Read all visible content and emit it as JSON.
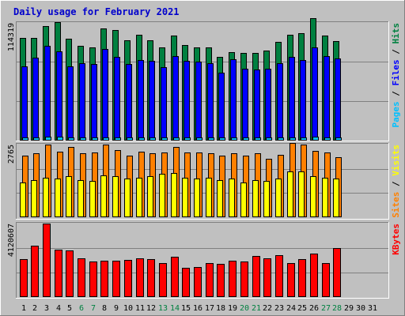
{
  "colors": {
    "background": "#c0c0c0",
    "title": "#0000cc",
    "hits": "#008040",
    "files": "#0000ff",
    "pages": "#00c0ff",
    "visits": "#ffff00",
    "sites": "#ff8000",
    "kbytes": "#ff0000",
    "weekday_label": "#000000",
    "weekend_label": "#008040",
    "gridline": "#808080"
  },
  "chart_data": {
    "type": "bar",
    "title": "Daily usage for February 2021",
    "days": [
      "1",
      "2",
      "3",
      "4",
      "5",
      "6",
      "7",
      "8",
      "9",
      "10",
      "11",
      "12",
      "13",
      "14",
      "15",
      "16",
      "17",
      "18",
      "19",
      "20",
      "21",
      "22",
      "23",
      "24",
      "25",
      "26",
      "27",
      "28",
      "29",
      "30",
      "31"
    ],
    "weekend_days": [
      "6",
      "7",
      "13",
      "14",
      "20",
      "21",
      "27",
      "28"
    ],
    "panels": [
      {
        "id": "hits-files-pages",
        "ymax_label": "114319",
        "ymax": 114319,
        "right_label": [
          {
            "text": "Pages",
            "color": "#00c0ff"
          },
          {
            "text": " / ",
            "color": "#000000"
          },
          {
            "text": "Files",
            "color": "#0000ff"
          },
          {
            "text": " / ",
            "color": "#000000"
          },
          {
            "text": "Hits",
            "color": "#008040"
          }
        ],
        "series": [
          {
            "name": "Hits",
            "color": "#008040",
            "values": [
              99300,
              99300,
              110700,
              114300,
              98500,
              91400,
              90100,
              108600,
              106500,
              96800,
              102300,
              96800,
              89900,
              101400,
              91900,
              90100,
              89700,
              80600,
              85600,
              84300,
              84800,
              86600,
              95200,
              102300,
              103300,
              118400,
              101400,
              96300,
              null,
              null,
              null
            ]
          },
          {
            "name": "Files",
            "color": "#0000ff",
            "values": [
              71900,
              79800,
              91400,
              86500,
              71400,
              75000,
              74100,
              88300,
              80900,
              74100,
              77700,
              76800,
              70500,
              81400,
              76800,
              76400,
              75000,
              65400,
              78200,
              69100,
              68600,
              69100,
              74500,
              80900,
              77700,
              90100,
              81900,
              79100,
              null,
              null,
              null
            ]
          },
          {
            "name": "Pages",
            "color": "#00c0ff",
            "values": [
              3200,
              3200,
              3600,
              3500,
              3300,
              3300,
              3000,
              3400,
              3300,
              3200,
              3300,
              3300,
              3200,
              3300,
              3200,
              3100,
              3000,
              2900,
              3100,
              3000,
              3000,
              3000,
              3300,
              3400,
              3300,
              3600,
              3300,
              3300,
              null,
              null,
              null
            ]
          }
        ]
      },
      {
        "id": "visits-sites",
        "ymax_label": "2765",
        "ymax": 2765,
        "right_label": [
          {
            "text": "Sites",
            "color": "#ff8000"
          },
          {
            "text": " / ",
            "color": "#000000"
          },
          {
            "text": "Visits",
            "color": "#ffff00"
          }
        ],
        "series": [
          {
            "name": "Sites",
            "color": "#ff8000",
            "values": [
              2330,
              2420,
              2750,
              2500,
              2660,
              2420,
              2460,
              2750,
              2560,
              2330,
              2500,
              2420,
              2460,
              2660,
              2460,
              2460,
              2420,
              2330,
              2420,
              2330,
              2420,
              2230,
              2370,
              2840,
              2750,
              2530,
              2460,
              2270,
              null,
              null,
              null
            ]
          },
          {
            "name": "Visits",
            "color": "#ffff00",
            "values": [
              1320,
              1420,
              1510,
              1460,
              1560,
              1420,
              1370,
              1600,
              1560,
              1460,
              1510,
              1560,
              1650,
              1690,
              1510,
              1460,
              1510,
              1420,
              1460,
              1320,
              1420,
              1370,
              1460,
              1740,
              1740,
              1560,
              1510,
              1460,
              null,
              null,
              null
            ]
          }
        ]
      },
      {
        "id": "kbytes",
        "ymax_label": "4120607",
        "ymax": 4120607,
        "right_label": [
          {
            "text": "KBytes",
            "color": "#ff0000"
          }
        ],
        "series": [
          {
            "name": "KBytes",
            "color": "#ff0000",
            "values": [
              2140000,
              2900000,
              4120000,
              2670000,
              2620000,
              2190000,
              1980000,
              2040000,
              2040000,
              2090000,
              2190000,
              2140000,
              1890000,
              2240000,
              1650000,
              1700000,
              1890000,
              1850000,
              2040000,
              1980000,
              2290000,
              2190000,
              2340000,
              1890000,
              2140000,
              2430000,
              1890000,
              2760000,
              null,
              null,
              null
            ]
          }
        ]
      }
    ]
  }
}
